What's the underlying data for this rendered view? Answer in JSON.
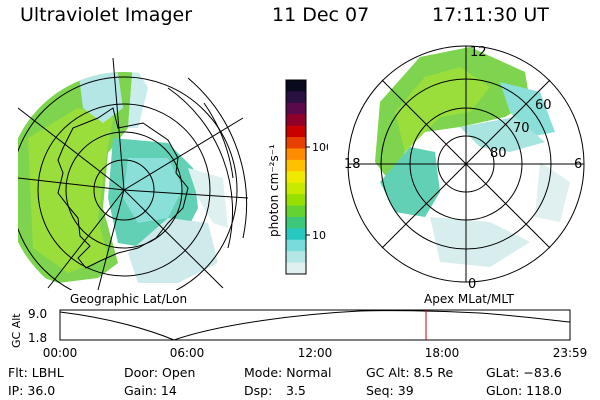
{
  "header": {
    "instrument": "Ultraviolet Imager",
    "date": "11 Dec 07",
    "time": "17:11:30 UT"
  },
  "colorbar": {
    "unit_label": "photon cm⁻²s⁻¹",
    "ticks": [
      "100",
      "10"
    ],
    "colors": [
      "#0a0a1e",
      "#2a1040",
      "#5a0a4a",
      "#90002a",
      "#c80000",
      "#e84000",
      "#ff8c00",
      "#ffc000",
      "#f0ea00",
      "#c8ea00",
      "#96e000",
      "#64d232",
      "#3cc878",
      "#28c8c0",
      "#78dcdc",
      "#b4e6e6",
      "#e0f0f0"
    ]
  },
  "left_map": {
    "projection_label": "Geographic Lat/Lon"
  },
  "right_map": {
    "projection_label": "Apex MLat/MLT",
    "mlat_labels": [
      "60",
      "70",
      "80"
    ],
    "mlt_labels": [
      "12",
      "18",
      "6",
      "0"
    ]
  },
  "altitude_plot": {
    "ylabel": "GC Alt",
    "y_ticks": [
      "9.0",
      "1.8"
    ],
    "x_ticks": [
      "00:00",
      "06:00",
      "12:00",
      "18:00",
      "23:59"
    ],
    "marker_color": "#cc0000"
  },
  "info": {
    "filter": "Flt: LBHL",
    "door": "Door: Open",
    "mode": "Mode: Normal",
    "gc_alt": "GC Alt: 8.5 Re",
    "glat": "GLat: −83.6",
    "ip": "IP: 36.0",
    "gain": "Gain: 14",
    "dsp_label": "Dsp:",
    "dsp_value": "3.5",
    "seq": "Seq: 39",
    "glon": "GLon: 118.0"
  }
}
